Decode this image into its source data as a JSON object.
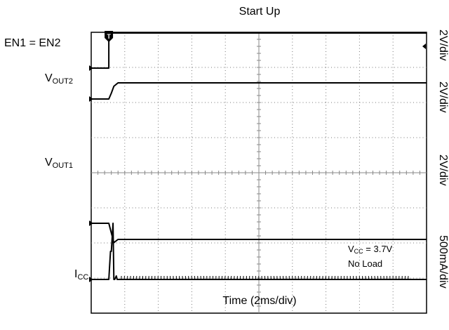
{
  "chart_data": {
    "type": "line",
    "title": "Start Up",
    "xlabel": "Time (2ms/div)",
    "x_unit": "ms",
    "xlim": [
      0,
      20
    ],
    "divisions": {
      "x": 10,
      "y": 8
    },
    "grid": true,
    "trigger_marker": "T",
    "series": [
      {
        "name": "EN1 = EN2",
        "scale": "2V/div",
        "x": [
          0,
          1.05,
          1.05,
          20
        ],
        "values": [
          0,
          0,
          5.0,
          5.0
        ]
      },
      {
        "name_parts": [
          "V",
          "OUT2"
        ],
        "scale": "2V/div",
        "x": [
          0,
          1.05,
          1.2,
          1.35,
          1.6,
          20
        ],
        "values": [
          0,
          0,
          1.2,
          2.6,
          3.3,
          3.3
        ]
      },
      {
        "name_parts": [
          "V",
          "OUT1"
        ],
        "scale": "2V/div",
        "x": [
          0,
          1.05,
          1.2,
          1.35,
          1.6,
          20
        ],
        "values": [
          0,
          0,
          -1.2,
          -2.4,
          -2.0,
          -2.0
        ]
      },
      {
        "name_parts": [
          "I",
          "CC"
        ],
        "scale": "500mA/div",
        "x": [
          0,
          1.05,
          1.15,
          1.2,
          1.3,
          1.35,
          1.4,
          1.5,
          1.55,
          20
        ],
        "values": [
          0,
          0,
          0.4,
          0.4,
          0.8,
          0,
          0,
          0.05,
          0,
          0
        ]
      }
    ],
    "annotation": {
      "line1_parts": [
        "V",
        "CC",
        " = 3.7V"
      ],
      "line2": "No Load"
    }
  }
}
